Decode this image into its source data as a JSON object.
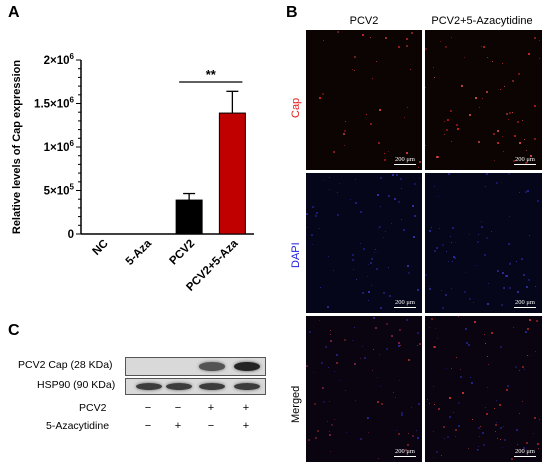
{
  "panels": {
    "a": "A",
    "b": "B",
    "c": "C"
  },
  "chart_data": {
    "type": "bar",
    "ylabel": "Relative levels of Cap expression",
    "categories": [
      "NC",
      "5-Aza",
      "PCV2",
      "PCV2+5-Aza"
    ],
    "values": [
      0,
      0,
      390000,
      1390000
    ],
    "errors": [
      0,
      0,
      75000,
      250000
    ],
    "ylim": [
      0,
      2000000
    ],
    "yticks": [
      0,
      500000,
      1000000,
      1500000,
      2000000
    ],
    "ytick_labels": [
      {
        "mantissa": "0",
        "exp": ""
      },
      {
        "mantissa": "5×10",
        "exp": "5"
      },
      {
        "mantissa": "1×10",
        "exp": "6"
      },
      {
        "mantissa": "1.5×10",
        "exp": "6"
      },
      {
        "mantissa": "2×10",
        "exp": "6"
      }
    ],
    "colors": [
      "#000000",
      "#000000",
      "#000000",
      "#c00000"
    ],
    "significance": {
      "from": 2,
      "to": 3,
      "label": "**"
    },
    "grid": false
  },
  "microscopy": {
    "col_headers": [
      "PCV2",
      "PCV2+5-Azacytidine"
    ],
    "row_labels": [
      {
        "text": "Cap",
        "color": "#e02020"
      },
      {
        "text": "DAPI",
        "color": "#2020e0"
      },
      {
        "text": "Merged",
        "color": "#000000"
      }
    ],
    "scalebar": "200 μm"
  },
  "blot": {
    "rows": [
      {
        "label": "PCV2 Cap (28 KDa)",
        "intensities": [
          0.0,
          0.0,
          0.55,
          0.95
        ]
      },
      {
        "label": "HSP90 (90 KDa)",
        "intensities": [
          0.75,
          0.75,
          0.75,
          0.75
        ]
      }
    ],
    "conditions": [
      {
        "label": "PCV2",
        "signs": [
          "−",
          "−",
          "+",
          "+"
        ]
      },
      {
        "label": "5-Azacytidine",
        "signs": [
          "−",
          "+",
          "−",
          "+"
        ]
      }
    ]
  }
}
